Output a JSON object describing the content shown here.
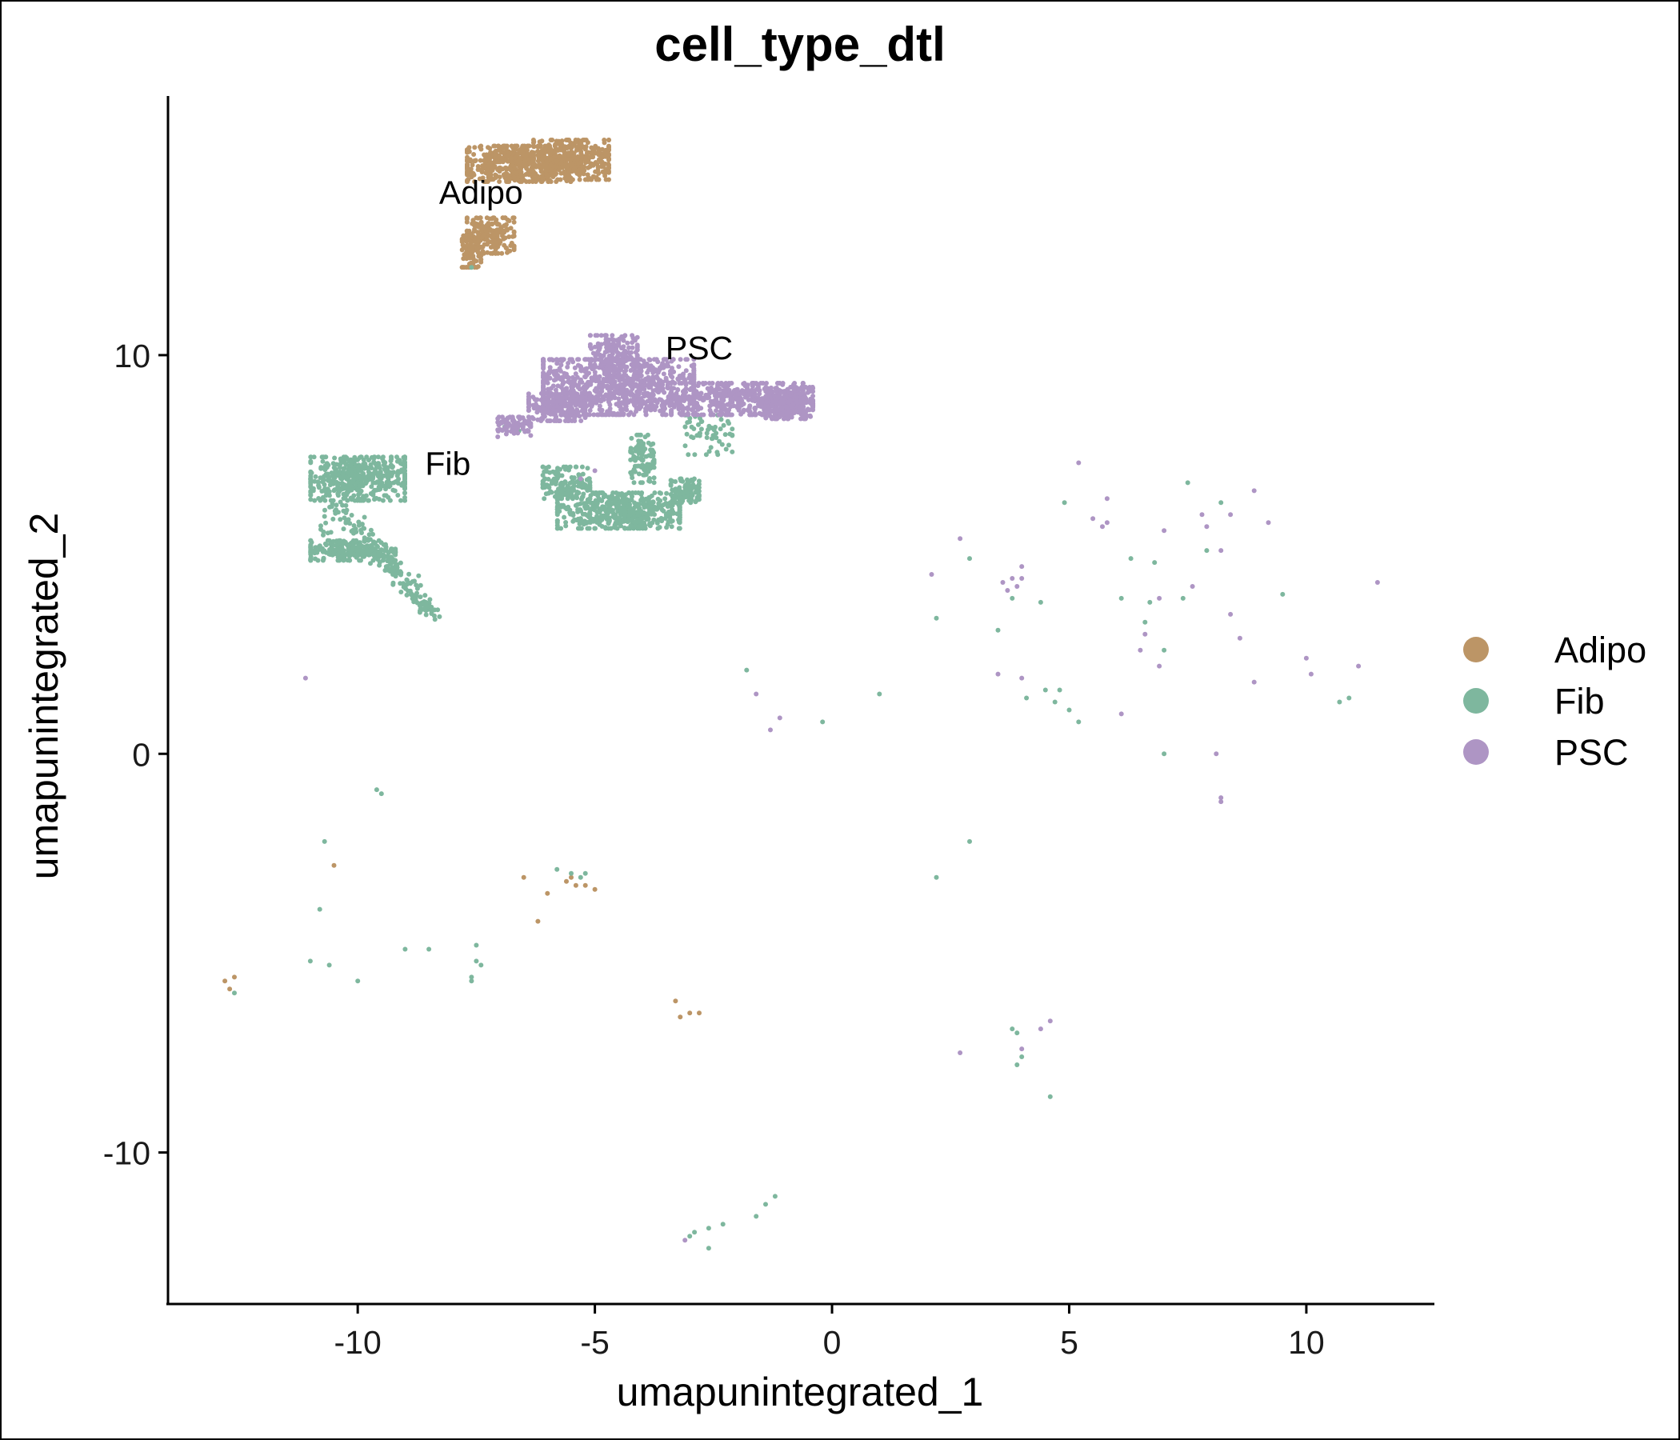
{
  "chart_data": {
    "type": "scatter",
    "title": "cell_type_dtl",
    "xlabel": "umapunintegrated_1",
    "ylabel": "umapunintegrated_2",
    "xlim": [
      -14.0,
      12.7
    ],
    "ylim": [
      -13.8,
      16.5
    ],
    "xticks": [
      -10,
      -5,
      0,
      5,
      10
    ],
    "xtick_labels": [
      "-10",
      "-5",
      "0",
      "5",
      "10"
    ],
    "yticks": [
      -10,
      0,
      10
    ],
    "ytick_labels": [
      "-10",
      "0",
      "10"
    ],
    "grid": false,
    "legend_position": "right",
    "legend": [
      {
        "name": "Adipo",
        "color": "#BC9566"
      },
      {
        "name": "Fib",
        "color": "#7EB79E"
      },
      {
        "name": "PSC",
        "color": "#AE95C4"
      }
    ],
    "cluster_labels": [
      {
        "text": "Adipo",
        "x": -7.4,
        "y": 13.8
      },
      {
        "text": "PSC",
        "x": -2.8,
        "y": 9.9
      },
      {
        "text": "Fib",
        "x": -8.1,
        "y": 7.0
      }
    ],
    "series": [
      {
        "name": "Adipo",
        "color": "#BC9566",
        "clusters": [
          {
            "cx": -6.6,
            "cy": 14.8,
            "rx": 1.1,
            "ry": 0.45,
            "n": 500
          },
          {
            "cx": -5.5,
            "cy": 14.9,
            "rx": 0.8,
            "ry": 0.5,
            "n": 350
          },
          {
            "cx": -7.2,
            "cy": 13.0,
            "rx": 0.5,
            "ry": 0.45,
            "n": 200
          },
          {
            "cx": -7.6,
            "cy": 12.6,
            "rx": 0.2,
            "ry": 0.4,
            "n": 80
          }
        ],
        "points": [
          [
            -6.5,
            -3.1
          ],
          [
            -6.0,
            -3.5
          ],
          [
            -5.6,
            -3.2
          ],
          [
            -5.4,
            -3.3
          ],
          [
            -5.2,
            -3.3
          ],
          [
            -5.0,
            -3.4
          ],
          [
            -5.5,
            -3.1
          ],
          [
            -6.2,
            -4.2
          ],
          [
            -10.5,
            -2.8
          ],
          [
            -12.8,
            -5.7
          ],
          [
            -12.7,
            -5.9
          ],
          [
            -12.6,
            -5.6
          ],
          [
            -3.3,
            -6.2
          ],
          [
            -3.2,
            -6.6
          ],
          [
            -3.0,
            -6.5
          ],
          [
            -2.8,
            -6.5
          ]
        ]
      },
      {
        "name": "Fib",
        "color": "#7EB79E",
        "clusters": [
          {
            "cx": -10.0,
            "cy": 6.9,
            "rx": 1.0,
            "ry": 0.55,
            "n": 450
          },
          {
            "cx": -10.1,
            "cy": 5.1,
            "rx": 0.9,
            "ry": 0.25,
            "n": 250
          },
          {
            "cx": -4.5,
            "cy": 6.1,
            "rx": 1.3,
            "ry": 0.45,
            "n": 500
          },
          {
            "cx": -5.6,
            "cy": 6.8,
            "rx": 0.5,
            "ry": 0.4,
            "n": 150
          },
          {
            "cx": -3.1,
            "cy": 6.6,
            "rx": 0.3,
            "ry": 0.3,
            "n": 100
          },
          {
            "cx": -4.0,
            "cy": 7.4,
            "rx": 0.25,
            "ry": 0.6,
            "n": 100
          },
          {
            "cx": -2.6,
            "cy": 8.0,
            "rx": 0.5,
            "ry": 0.5,
            "n": 60
          }
        ],
        "streaks": [
          {
            "x0": -10.3,
            "y0": 6.2,
            "x1": -9.6,
            "y1": 5.0,
            "n": 50
          },
          {
            "x0": -9.4,
            "y0": 4.9,
            "x1": -8.4,
            "y1": 3.4,
            "n": 110
          },
          {
            "x0": -10.4,
            "y0": 6.7,
            "x1": -10.7,
            "y1": 5.4,
            "n": 25
          }
        ],
        "points": [
          [
            -7.6,
            12.2
          ],
          [
            -6.9,
            8.2
          ],
          [
            -6.6,
            8.1
          ],
          [
            -1.8,
            2.1
          ],
          [
            1.0,
            1.5
          ],
          [
            -0.2,
            0.8
          ],
          [
            -9.6,
            -0.9
          ],
          [
            -9.5,
            -1.0
          ],
          [
            -10.7,
            -2.2
          ],
          [
            -10.8,
            -3.9
          ],
          [
            -11.0,
            -5.2
          ],
          [
            -10.6,
            -5.3
          ],
          [
            -10.0,
            -5.7
          ],
          [
            -9.0,
            -4.9
          ],
          [
            -8.5,
            -4.9
          ],
          [
            -7.5,
            -4.8
          ],
          [
            -7.5,
            -5.2
          ],
          [
            -7.4,
            -5.3
          ],
          [
            -7.6,
            -5.6
          ],
          [
            -7.6,
            -5.7
          ],
          [
            -5.8,
            -2.9
          ],
          [
            -5.5,
            -3.0
          ],
          [
            -5.3,
            -3.1
          ],
          [
            -5.2,
            -3.0
          ],
          [
            2.2,
            -3.1
          ],
          [
            2.9,
            -2.2
          ],
          [
            -12.6,
            -6.0
          ],
          [
            3.9,
            -7.0
          ],
          [
            3.8,
            -6.9
          ],
          [
            4.0,
            -7.6
          ],
          [
            3.9,
            -7.8
          ],
          [
            4.6,
            -8.6
          ],
          [
            -2.6,
            -12.4
          ],
          [
            -2.3,
            -11.8
          ],
          [
            -2.6,
            -11.9
          ],
          [
            -2.9,
            -12.0
          ],
          [
            -3.0,
            -12.1
          ],
          [
            -1.6,
            -11.6
          ],
          [
            -1.4,
            -11.3
          ],
          [
            -1.2,
            -11.1
          ],
          [
            2.2,
            3.4
          ],
          [
            2.9,
            4.9
          ],
          [
            3.5,
            3.1
          ],
          [
            3.8,
            3.9
          ],
          [
            4.4,
            3.8
          ],
          [
            4.9,
            6.3
          ],
          [
            4.1,
            1.4
          ],
          [
            4.5,
            1.6
          ],
          [
            4.7,
            1.3
          ],
          [
            4.8,
            1.6
          ],
          [
            5.0,
            1.1
          ],
          [
            5.2,
            0.8
          ],
          [
            6.1,
            3.9
          ],
          [
            6.3,
            4.9
          ],
          [
            6.6,
            3.3
          ],
          [
            6.7,
            3.8
          ],
          [
            6.8,
            4.8
          ],
          [
            7.0,
            2.6
          ],
          [
            7.0,
            0.0
          ],
          [
            7.4,
            3.9
          ],
          [
            7.5,
            6.8
          ],
          [
            7.9,
            5.1
          ],
          [
            8.2,
            6.3
          ],
          [
            9.5,
            4.0
          ],
          [
            10.7,
            1.3
          ],
          [
            10.9,
            1.4
          ]
        ]
      },
      {
        "name": "PSC",
        "color": "#AE95C4",
        "clusters": [
          {
            "cx": -4.5,
            "cy": 9.2,
            "rx": 1.6,
            "ry": 0.7,
            "n": 900
          },
          {
            "cx": -2.0,
            "cy": 8.9,
            "rx": 1.4,
            "ry": 0.4,
            "n": 500
          },
          {
            "cx": -0.9,
            "cy": 8.8,
            "rx": 0.5,
            "ry": 0.4,
            "n": 300
          },
          {
            "cx": -5.8,
            "cy": 8.7,
            "rx": 0.6,
            "ry": 0.35,
            "n": 200
          },
          {
            "cx": -4.6,
            "cy": 10.1,
            "rx": 0.5,
            "ry": 0.4,
            "n": 150
          },
          {
            "cx": -6.7,
            "cy": 8.2,
            "rx": 0.35,
            "ry": 0.25,
            "n": 80
          }
        ],
        "points": [
          [
            -11.1,
            1.9
          ],
          [
            -1.6,
            1.5
          ],
          [
            -1.1,
            0.9
          ],
          [
            -1.3,
            0.6
          ],
          [
            -5.3,
            6.9
          ],
          [
            -5.0,
            7.1
          ],
          [
            2.1,
            4.5
          ],
          [
            2.7,
            5.4
          ],
          [
            3.6,
            4.3
          ],
          [
            3.7,
            4.1
          ],
          [
            3.8,
            4.4
          ],
          [
            3.9,
            4.2
          ],
          [
            4.0,
            4.4
          ],
          [
            4.0,
            4.7
          ],
          [
            3.5,
            2.0
          ],
          [
            4.0,
            1.9
          ],
          [
            5.2,
            7.3
          ],
          [
            5.5,
            5.9
          ],
          [
            5.7,
            5.7
          ],
          [
            5.8,
            6.4
          ],
          [
            5.8,
            5.8
          ],
          [
            6.1,
            1.0
          ],
          [
            6.5,
            2.6
          ],
          [
            6.6,
            3.0
          ],
          [
            6.9,
            2.2
          ],
          [
            6.9,
            3.9
          ],
          [
            7.0,
            5.6
          ],
          [
            7.6,
            4.2
          ],
          [
            7.8,
            6.0
          ],
          [
            7.9,
            5.7
          ],
          [
            8.2,
            5.1
          ],
          [
            8.4,
            6.0
          ],
          [
            8.4,
            3.5
          ],
          [
            8.6,
            2.9
          ],
          [
            8.9,
            6.6
          ],
          [
            9.2,
            5.8
          ],
          [
            8.9,
            1.8
          ],
          [
            10.0,
            2.4
          ],
          [
            10.1,
            2.0
          ],
          [
            11.1,
            2.2
          ],
          [
            11.5,
            4.3
          ],
          [
            8.2,
            -1.1
          ],
          [
            8.2,
            -1.2
          ],
          [
            8.1,
            0.0
          ],
          [
            2.7,
            -7.5
          ],
          [
            4.0,
            -7.4
          ],
          [
            4.4,
            -6.9
          ],
          [
            4.6,
            -6.7
          ],
          [
            -3.1,
            -12.2
          ]
        ]
      }
    ]
  }
}
